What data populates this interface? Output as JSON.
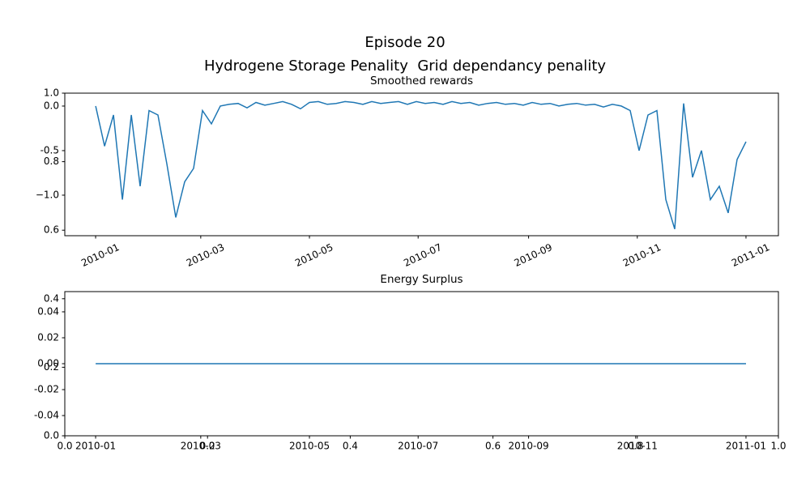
{
  "chart_data": [
    {
      "type": "frame",
      "title": "Episode 20",
      "subtitle": "Hydrogene Storage Penality  Grid dependancy penality",
      "xlim": [
        0,
        1
      ],
      "ylim": [
        0,
        1
      ],
      "xticks": [
        {
          "value": 0,
          "label": "0.0"
        },
        0.2,
        0.4,
        0.6,
        0.8,
        {
          "value": 1,
          "label": "1.0"
        }
      ],
      "yticks": [
        {
          "value": 0,
          "label": "0.0"
        },
        0.2,
        0.4,
        0.6,
        0.8,
        {
          "value": 1,
          "label": "1.0"
        }
      ]
    },
    {
      "type": "line",
      "title": "Smoothed rewards",
      "color": "#1f77b4",
      "x": [
        0,
        5,
        10,
        15,
        20,
        25,
        30,
        35,
        40,
        45,
        50,
        55,
        60,
        65,
        70,
        75,
        80,
        85,
        90,
        95,
        100,
        105,
        110,
        115,
        120,
        125,
        130,
        135,
        140,
        145,
        150,
        155,
        160,
        165,
        170,
        175,
        180,
        185,
        190,
        195,
        200,
        205,
        210,
        215,
        220,
        225,
        230,
        235,
        240,
        245,
        250,
        255,
        260,
        265,
        270,
        275,
        280,
        285,
        290,
        295,
        300,
        305,
        310,
        315,
        320,
        325,
        330,
        335,
        340,
        345,
        350,
        355,
        360,
        365
      ],
      "values": [
        0.0,
        -0.45,
        -0.1,
        -1.05,
        -0.1,
        -0.9,
        -0.05,
        -0.1,
        -0.65,
        -1.25,
        -0.85,
        -0.7,
        -0.05,
        -0.2,
        0.0,
        0.02,
        0.03,
        -0.02,
        0.04,
        0.01,
        0.03,
        0.05,
        0.02,
        -0.03,
        0.04,
        0.05,
        0.02,
        0.03,
        0.05,
        0.04,
        0.02,
        0.05,
        0.03,
        0.04,
        0.05,
        0.02,
        0.05,
        0.03,
        0.04,
        0.02,
        0.05,
        0.03,
        0.04,
        0.01,
        0.03,
        0.04,
        0.02,
        0.03,
        0.01,
        0.04,
        0.02,
        0.03,
        0.0,
        0.02,
        0.03,
        0.01,
        0.02,
        -0.01,
        0.02,
        0.0,
        -0.05,
        -0.5,
        -0.1,
        -0.05,
        -1.05,
        -1.38,
        0.03,
        -0.8,
        -0.5,
        -1.05,
        -0.9,
        -1.2,
        -0.6,
        -0.4
      ],
      "xlim": [
        -17.3,
        383.2
      ],
      "ylim": [
        -1.455,
        0.145
      ],
      "xticks": [
        {
          "value": 0,
          "label": "2010-01"
        },
        {
          "value": 59,
          "label": "2010-03"
        },
        {
          "value": 120,
          "label": "2010-05"
        },
        {
          "value": 181,
          "label": "2010-07"
        },
        {
          "value": 243,
          "label": "2010-09"
        },
        {
          "value": 304,
          "label": "2010-11"
        },
        {
          "value": 365,
          "label": "2011-01"
        }
      ],
      "yticks": [
        {
          "value": 0,
          "label": "0.0"
        },
        -0.5,
        {
          "value": -1,
          "label": "−1.0"
        }
      ]
    },
    {
      "type": "line",
      "title": "Energy Surplus",
      "color": "#1f77b4",
      "x": [
        0,
        365
      ],
      "values": [
        0,
        0
      ],
      "xlim": [
        -17.3,
        383.2
      ],
      "ylim": [
        -0.0556,
        0.0556
      ],
      "xticks": [
        {
          "value": 0,
          "label": "2010-01"
        },
        {
          "value": 59,
          "label": "2010-03"
        },
        {
          "value": 120,
          "label": "2010-05"
        },
        {
          "value": 181,
          "label": "2010-07"
        },
        {
          "value": 243,
          "label": "2010-09"
        },
        {
          "value": 304,
          "label": "2010-11"
        },
        {
          "value": 365,
          "label": "2011-01"
        }
      ],
      "yticks": [
        0.04,
        0.02,
        {
          "value": 0,
          "label": "0.00"
        },
        -0.02,
        -0.04
      ]
    }
  ]
}
